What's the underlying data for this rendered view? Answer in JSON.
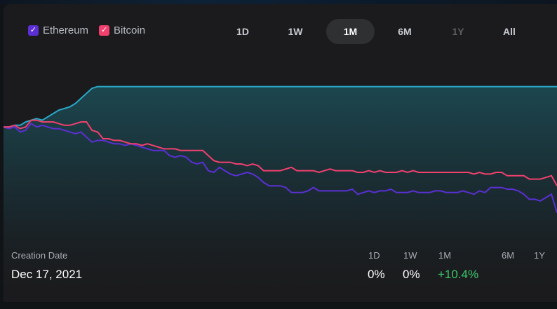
{
  "legend": [
    {
      "label": "Ethereum",
      "color": "#5b2fd3",
      "checked": true,
      "check_glyph": "✓"
    },
    {
      "label": "Bitcoin",
      "color": "#f2406e",
      "checked": true,
      "check_glyph": "✓"
    }
  ],
  "ranges": [
    {
      "label": "1D",
      "state": "normal"
    },
    {
      "label": "1W",
      "state": "normal"
    },
    {
      "label": "1M",
      "state": "active"
    },
    {
      "label": "6M",
      "state": "normal"
    },
    {
      "label": "1Y",
      "state": "disabled"
    },
    {
      "label": "All",
      "state": "normal"
    }
  ],
  "footer": {
    "creation_label": "Creation Date",
    "creation_value": "Dec 17, 2021",
    "periods": [
      {
        "label": "1D",
        "value": "0%"
      },
      {
        "label": "1W",
        "value": "0%"
      },
      {
        "label": "1M",
        "value": "+10.4%",
        "positive": true
      },
      {
        "label": "6M",
        "value": ""
      },
      {
        "label": "1Y",
        "value": ""
      }
    ]
  },
  "colors": {
    "benchmark_line": "#2aa9c9",
    "ethereum_line": "#5b2fd3",
    "bitcoin_line": "#f2406e",
    "positive": "#3ac86b"
  },
  "chart_data": {
    "type": "line",
    "ylim": [
      0,
      100
    ],
    "series": [
      {
        "key": "benchmark",
        "color": "#2aa9c9",
        "area": true,
        "values": [
          67,
          67,
          68,
          68,
          70,
          71,
          72,
          71,
          73,
          75,
          77,
          78,
          79,
          81,
          84,
          87,
          90,
          91,
          91,
          91,
          91,
          91,
          91,
          91,
          91,
          91,
          91,
          91,
          91,
          91,
          91,
          91,
          91,
          91,
          91,
          91,
          91,
          91,
          91,
          91,
          91,
          91,
          91,
          91,
          91,
          91,
          91,
          91,
          91,
          91,
          91,
          91,
          91,
          91,
          91,
          91,
          91,
          91,
          91,
          91,
          91,
          91,
          91,
          91,
          91,
          91,
          91,
          91,
          91,
          91,
          91,
          91,
          91,
          91,
          91,
          91,
          91,
          91,
          91,
          91,
          91,
          91,
          91,
          91,
          91,
          91,
          91,
          91,
          91,
          91,
          91,
          91,
          91,
          91,
          91,
          91,
          91,
          91,
          91,
          91,
          91
        ]
      },
      {
        "key": "ethereum",
        "name": "Ethereum",
        "color": "#5b2fd3",
        "values": [
          67,
          66,
          67,
          64,
          65,
          69,
          67,
          68,
          67,
          66,
          66,
          65,
          64,
          63,
          64,
          61,
          58,
          59,
          59,
          58,
          57,
          57,
          56,
          57,
          56,
          55,
          54,
          53,
          53,
          53,
          50,
          49,
          50,
          49,
          46,
          45,
          46,
          41,
          40,
          43,
          41,
          39,
          38,
          39,
          40,
          39,
          37,
          34,
          32,
          32,
          32,
          31,
          28,
          28,
          28,
          29,
          31,
          29,
          29,
          29,
          29,
          29,
          29,
          30,
          27,
          28,
          29,
          28,
          29,
          29,
          30,
          28,
          28,
          28,
          29,
          28,
          28,
          28,
          29,
          29,
          28,
          28,
          28,
          29,
          28,
          27,
          29,
          28,
          31,
          31,
          31,
          30,
          30,
          29,
          27,
          24,
          24,
          23,
          25,
          27,
          16
        ]
      },
      {
        "key": "bitcoin",
        "name": "Bitcoin",
        "color": "#f2406e",
        "values": [
          67,
          67,
          68,
          66,
          67,
          71,
          71,
          70,
          70,
          70,
          69,
          68,
          68,
          69,
          70,
          70,
          65,
          64,
          60,
          60,
          59,
          59,
          58,
          57,
          57,
          56,
          57,
          56,
          55,
          54,
          54,
          54,
          53,
          53,
          53,
          53,
          53,
          50,
          47,
          46,
          46,
          46,
          45,
          45,
          44,
          45,
          44,
          41,
          41,
          41,
          41,
          42,
          43,
          41,
          41,
          41,
          41,
          40,
          41,
          42,
          41,
          41,
          41,
          41,
          40,
          40,
          41,
          40,
          41,
          40,
          40,
          40,
          41,
          40,
          41,
          40,
          40,
          40,
          40,
          40,
          40,
          40,
          40,
          40,
          40,
          39,
          40,
          39,
          39,
          40,
          40,
          38,
          38,
          38,
          38,
          36,
          36,
          36,
          37,
          38,
          32
        ]
      }
    ]
  }
}
